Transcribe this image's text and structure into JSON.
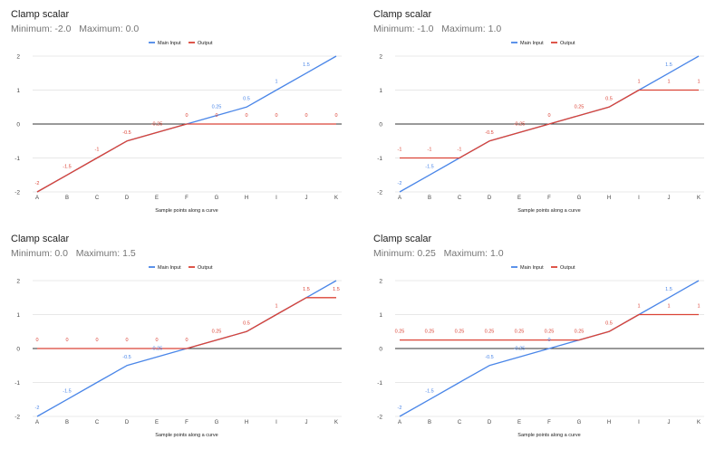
{
  "chart_data": [
    {
      "type": "line",
      "title": "Clamp scalar",
      "subtitle": "Minimum: -2.0   Maximum: 0.0",
      "xlabel": "Sample points along a curve",
      "ylabel": "",
      "categories": [
        "A",
        "B",
        "C",
        "D",
        "E",
        "F",
        "G",
        "H",
        "I",
        "J",
        "K"
      ],
      "ylim": [
        -2,
        2
      ],
      "yticks": [
        -2,
        -1,
        0,
        1,
        2
      ],
      "legend_position": "top-center",
      "series": [
        {
          "name": "Main Input",
          "color": "#4a86e8",
          "values": [
            -2,
            -1.5,
            -1,
            -0.5,
            -0.25,
            0,
            0.25,
            0.5,
            1,
            1.5,
            2
          ],
          "labels": [
            "",
            "",
            "",
            "",
            "",
            "",
            "0.25",
            "0.5",
            "1",
            "1.5",
            ""
          ]
        },
        {
          "name": "Output",
          "color": "#db4437",
          "values": [
            -2,
            -1.5,
            -1,
            -0.5,
            -0.25,
            0,
            0,
            0,
            0,
            0,
            0
          ],
          "labels": [
            "-2",
            "-1.5",
            "-1",
            "-0.5",
            "-0.25",
            "0",
            "0",
            "0",
            "0",
            "0",
            "0"
          ]
        }
      ]
    },
    {
      "type": "line",
      "title": "Clamp scalar",
      "subtitle": "Minimum: -1.0   Maximum: 1.0",
      "xlabel": "Sample points along a curve",
      "ylabel": "",
      "categories": [
        "A",
        "B",
        "C",
        "D",
        "E",
        "F",
        "G",
        "H",
        "I",
        "J",
        "K"
      ],
      "ylim": [
        -2,
        2
      ],
      "yticks": [
        -2,
        -1,
        0,
        1,
        2
      ],
      "legend_position": "top-center",
      "series": [
        {
          "name": "Main Input",
          "color": "#4a86e8",
          "values": [
            -2,
            -1.5,
            -1,
            -0.5,
            -0.25,
            0,
            0.25,
            0.5,
            1,
            1.5,
            2
          ],
          "labels": [
            "-2",
            "-1.5",
            "",
            "",
            "",
            "",
            "",
            "",
            "",
            "1.5",
            ""
          ]
        },
        {
          "name": "Output",
          "color": "#db4437",
          "values": [
            -1,
            -1,
            -1,
            -0.5,
            -0.25,
            0,
            0.25,
            0.5,
            1,
            1,
            1
          ],
          "labels": [
            "-1",
            "-1",
            "-1",
            "-0.5",
            "-0.25",
            "0",
            "0.25",
            "0.5",
            "1",
            "1",
            "1"
          ]
        }
      ]
    },
    {
      "type": "line",
      "title": "Clamp scalar",
      "subtitle": "Minimum: 0.0   Maximum: 1.5",
      "xlabel": "Sample points along a curve",
      "ylabel": "",
      "categories": [
        "A",
        "B",
        "C",
        "D",
        "E",
        "F",
        "G",
        "H",
        "I",
        "J",
        "K"
      ],
      "ylim": [
        -2,
        2
      ],
      "yticks": [
        -2,
        -1,
        0,
        1,
        2
      ],
      "legend_position": "top-center",
      "series": [
        {
          "name": "Main Input",
          "color": "#4a86e8",
          "values": [
            -2,
            -1.5,
            -1,
            -0.5,
            -0.25,
            0,
            0.25,
            0.5,
            1,
            1.5,
            2
          ],
          "labels": [
            "-2",
            "-1.5",
            "",
            "-0.5",
            "-0.25",
            "",
            "",
            "",
            "",
            "",
            ""
          ]
        },
        {
          "name": "Output",
          "color": "#db4437",
          "values": [
            0,
            0,
            0,
            0,
            0,
            0,
            0.25,
            0.5,
            1,
            1.5,
            1.5
          ],
          "labels": [
            "0",
            "0",
            "0",
            "0",
            "0",
            "0",
            "0.25",
            "0.5",
            "1",
            "1.5",
            "1.5"
          ]
        }
      ]
    },
    {
      "type": "line",
      "title": "Clamp scalar",
      "subtitle": "Minimum: 0.25   Maximum: 1.0",
      "xlabel": "Sample points along a curve",
      "ylabel": "",
      "categories": [
        "A",
        "B",
        "C",
        "D",
        "E",
        "F",
        "G",
        "H",
        "I",
        "J",
        "K"
      ],
      "ylim": [
        -2,
        2
      ],
      "yticks": [
        -2,
        -1,
        0,
        1,
        2
      ],
      "legend_position": "top-center",
      "series": [
        {
          "name": "Main Input",
          "color": "#4a86e8",
          "values": [
            -2,
            -1.5,
            -1,
            -0.5,
            -0.25,
            0,
            0.25,
            0.5,
            1,
            1.5,
            2
          ],
          "labels": [
            "-2",
            "-1.5",
            "",
            "-0.5",
            "-0.25",
            "0",
            "",
            "",
            "",
            "1.5",
            ""
          ]
        },
        {
          "name": "Output",
          "color": "#db4437",
          "values": [
            0.25,
            0.25,
            0.25,
            0.25,
            0.25,
            0.25,
            0.25,
            0.5,
            1,
            1,
            1
          ],
          "labels": [
            "0.25",
            "0.25",
            "0.25",
            "0.25",
            "0.25",
            "0.25",
            "0.25",
            "0.5",
            "1",
            "1",
            "1"
          ]
        }
      ]
    }
  ],
  "colors": {
    "main_input": "#4a86e8",
    "output": "#db4437",
    "grid": "#e0e0e0",
    "zero_line": "#333333",
    "axis_text": "#444444"
  }
}
